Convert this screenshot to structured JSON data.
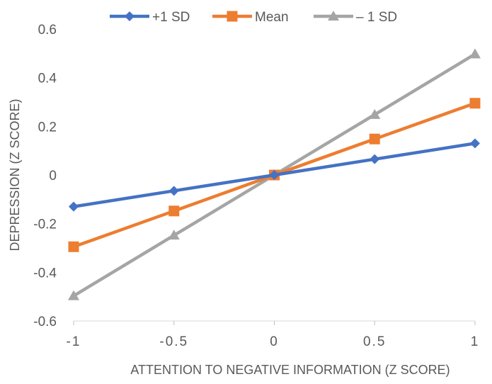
{
  "chart_data": {
    "type": "line",
    "title": "",
    "xlabel": "ATTENTION TO NEGATIVE INFORMATION (Z SCORE)",
    "ylabel": "DEPRESSION (Z SCORE)",
    "x": [
      -1,
      -0.5,
      0,
      0.5,
      1
    ],
    "xlim": [
      -1,
      1
    ],
    "ylim": [
      -0.6,
      0.6
    ],
    "xticks": [
      -1,
      -0.5,
      0,
      0.5,
      1
    ],
    "xtick_labels": [
      "-1",
      "-0.5",
      "0",
      "0.5",
      "1"
    ],
    "yticks": [
      0.6,
      0.4,
      0.2,
      0,
      -0.2,
      -0.4,
      -0.6
    ],
    "ytick_labels": [
      "0.6",
      "0.4",
      "0.2",
      "0",
      "-0.2",
      "-0.4",
      "-0.6"
    ],
    "grid": false,
    "legend_position": "top",
    "series": [
      {
        "name": "+1 SD",
        "values": [
          -0.13,
          -0.065,
          0,
          0.065,
          0.13
        ],
        "color": "#4472C4",
        "marker": "diamond"
      },
      {
        "name": "Mean",
        "values": [
          -0.295,
          -0.148,
          0,
          0.148,
          0.295
        ],
        "color": "#ED7D31",
        "marker": "square"
      },
      {
        "name": "– 1 SD",
        "values": [
          -0.497,
          -0.248,
          0,
          0.248,
          0.497
        ],
        "color": "#A5A5A5",
        "marker": "triangle"
      }
    ]
  }
}
